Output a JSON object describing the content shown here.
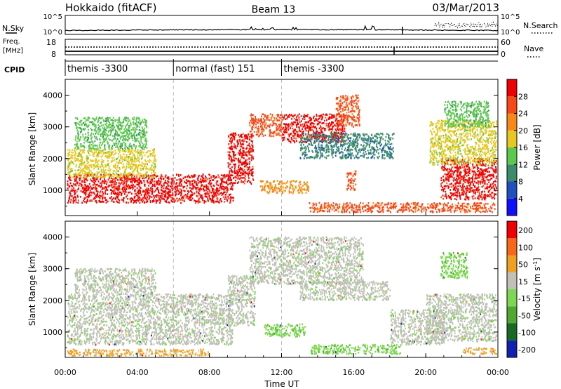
{
  "header": {
    "station": "Hokkaido (fitACF)",
    "beam": "Beam 13",
    "date": "03/Mar/2013"
  },
  "noise_panel": {
    "left_label": "N.Sky",
    "right_label": "N.Search",
    "tick_top": "10^5",
    "tick_bottom": "10^0",
    "right_tick_top": "10^5",
    "right_tick_bottom": "10^0"
  },
  "freq_panel": {
    "left_label_1": "Freq.",
    "left_label_2": "[MHz]",
    "tick_top": "18",
    "tick_bottom": "8",
    "right_label": "Nave",
    "right_tick_top": "60",
    "right_tick_bottom": "0"
  },
  "cpid_panel": {
    "label": "CPID",
    "segments": [
      {
        "start_hour": 0,
        "end_hour": 6,
        "text": "themis -3300"
      },
      {
        "start_hour": 6,
        "end_hour": 12,
        "text": "normal (fast) 151"
      },
      {
        "start_hour": 12,
        "end_hour": 24,
        "text": "themis -3300"
      }
    ]
  },
  "chart_data": [
    {
      "type": "heatmap",
      "name": "Power",
      "ylabel": "Slant Range [km]",
      "ylim": [
        200,
        4500
      ],
      "y_ticks": [
        "1000",
        "2000",
        "3000",
        "4000"
      ],
      "colorbar_label": "Power [dB]",
      "colorbar_ticks": [
        "4",
        "8",
        "12",
        "16",
        "20",
        "24",
        "28"
      ],
      "colors": [
        "#1010ff",
        "#2050c0",
        "#3c8c6c",
        "#5cc84c",
        "#e8c820",
        "#f88818",
        "#f84818",
        "#f00000"
      ],
      "echo_regions": [
        {
          "t0": 0.1,
          "t1": 9.3,
          "r0": 600,
          "r1": 1500,
          "level": 7
        },
        {
          "t0": 0.1,
          "t1": 5.0,
          "r0": 1400,
          "r1": 2300,
          "level": 4
        },
        {
          "t0": 0.5,
          "t1": 4.5,
          "r0": 2300,
          "r1": 3300,
          "level": 3
        },
        {
          "t0": 9.0,
          "t1": 10.4,
          "r0": 1200,
          "r1": 2800,
          "level": 7
        },
        {
          "t0": 10.2,
          "t1": 12.0,
          "r0": 2700,
          "r1": 3400,
          "level": 6
        },
        {
          "t0": 12.0,
          "t1": 15.5,
          "r0": 2500,
          "r1": 3400,
          "level": 7
        },
        {
          "t0": 15.0,
          "t1": 16.3,
          "r0": 3000,
          "r1": 4000,
          "level": 6
        },
        {
          "t0": 13.0,
          "t1": 18.2,
          "r0": 2000,
          "r1": 2800,
          "level": 2
        },
        {
          "t0": 10.8,
          "t1": 13.5,
          "r0": 900,
          "r1": 1300,
          "level": 5
        },
        {
          "t0": 15.6,
          "t1": 16.1,
          "r0": 1000,
          "r1": 1600,
          "level": 6
        },
        {
          "t0": 13.5,
          "t1": 23.8,
          "r0": 300,
          "r1": 600,
          "level": 6
        },
        {
          "t0": 20.8,
          "t1": 23.9,
          "r0": 700,
          "r1": 2000,
          "level": 7
        },
        {
          "t0": 20.2,
          "t1": 23.9,
          "r0": 1800,
          "r1": 3200,
          "level": 4
        },
        {
          "t0": 21.0,
          "t1": 23.5,
          "r0": 3000,
          "r1": 3800,
          "level": 3
        }
      ]
    },
    {
      "type": "heatmap",
      "name": "Velocity",
      "ylabel": "Slant Range [km]",
      "ylim": [
        200,
        4500
      ],
      "y_ticks": [
        "1000",
        "2000",
        "3000",
        "4000"
      ],
      "colorbar_label": "Velocity [m s",
      "colorbar_label_sup": "-1",
      "colorbar_label_end": "]",
      "colorbar_ticks": [
        "200",
        "100",
        "50",
        "15",
        "-15",
        "-50",
        "-100",
        "-200"
      ],
      "colors": [
        "#1020b0",
        "#186828",
        "#50a830",
        "#7cd850",
        "#c0c0b8",
        "#f0a020",
        "#f86818",
        "#f00000"
      ],
      "echo_regions": [
        {
          "t0": 0.1,
          "t1": 9.3,
          "r0": 600,
          "r1": 2200,
          "level": 4
        },
        {
          "t0": 0.5,
          "t1": 5.0,
          "r0": 2200,
          "r1": 3000,
          "level": 4
        },
        {
          "t0": 9.0,
          "t1": 10.5,
          "r0": 1200,
          "r1": 2800,
          "level": 4
        },
        {
          "t0": 10.2,
          "t1": 16.5,
          "r0": 2500,
          "r1": 4000,
          "level": 4
        },
        {
          "t0": 13.0,
          "t1": 18.0,
          "r0": 2000,
          "r1": 2600,
          "level": 4
        },
        {
          "t0": 11.0,
          "t1": 13.3,
          "r0": 850,
          "r1": 1250,
          "level": 3
        },
        {
          "t0": 13.6,
          "t1": 18.6,
          "r0": 300,
          "r1": 600,
          "level": 3
        },
        {
          "t0": 18.0,
          "t1": 21.0,
          "r0": 600,
          "r1": 1700,
          "level": 4
        },
        {
          "t0": 20.0,
          "t1": 23.9,
          "r0": 700,
          "r1": 2200,
          "level": 4
        },
        {
          "t0": 20.8,
          "t1": 22.3,
          "r0": 2700,
          "r1": 3500,
          "level": 3
        },
        {
          "t0": 0.1,
          "t1": 8.0,
          "r0": 250,
          "r1": 450,
          "level": 5
        },
        {
          "t0": 22.0,
          "t1": 23.9,
          "r0": 300,
          "r1": 500,
          "level": 5
        }
      ]
    }
  ],
  "time_axis": {
    "xlabel": "Time UT",
    "xlim": [
      0,
      24
    ],
    "ticks": [
      "00:00",
      "04:00",
      "08:00",
      "12:00",
      "16:00",
      "20:00",
      "00:00"
    ]
  }
}
